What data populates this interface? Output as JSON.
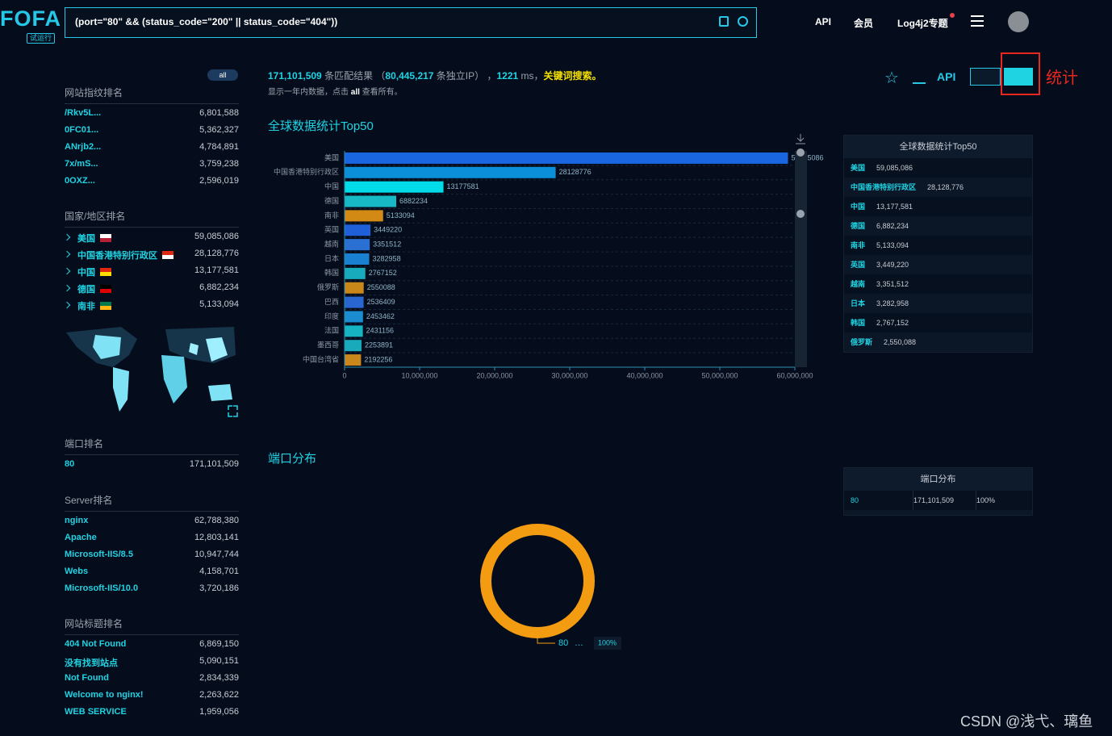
{
  "header": {
    "logo": "FOFA",
    "badge": "试运行",
    "query": "(port=\"80\" && (status_code=\"200\" || status_code=\"404\"))",
    "nav": [
      "API",
      "会员",
      "Log4j2专题"
    ]
  },
  "sidebar": {
    "all": "all",
    "sections": [
      {
        "title": "网站指纹排名",
        "rows": [
          [
            "/Rkv5L...",
            "6,801,588"
          ],
          [
            "0FC01...",
            "5,362,327"
          ],
          [
            "ANrjb2...",
            "4,784,891"
          ],
          [
            "7x/mS...",
            "3,759,238"
          ],
          [
            "0OXZ...",
            "2,596,019"
          ]
        ]
      },
      {
        "title": "国家/地区排名",
        "rows": [
          [
            "美国",
            "59,085,086"
          ],
          [
            "中国香港特别行政区",
            "28,128,776"
          ],
          [
            "中国",
            "13,177,581"
          ],
          [
            "德国",
            "6,882,234"
          ],
          [
            "南非",
            "5,133,094"
          ]
        ]
      },
      {
        "title": "端口排名",
        "rows": [
          [
            "80",
            "171,101,509"
          ]
        ]
      },
      {
        "title": "Server排名",
        "rows": [
          [
            "nginx",
            "62,788,380"
          ],
          [
            "Apache",
            "12,803,141"
          ],
          [
            "Microsoft-IIS/8.5",
            "10,947,744"
          ],
          [
            "Webs",
            "4,158,701"
          ],
          [
            "Microsoft-IIS/10.0",
            "3,720,186"
          ]
        ]
      },
      {
        "title": "网站标题排名",
        "rows": [
          [
            "404 Not Found",
            "6,869,150"
          ],
          [
            "没有找到站点",
            "5,090,151"
          ],
          [
            "Not Found",
            "2,834,339"
          ],
          [
            "Welcome to nginx!",
            "2,263,622"
          ],
          [
            "WEB SERVICE",
            "1,959,056"
          ]
        ]
      }
    ]
  },
  "summary": {
    "parts": [
      "171,101,509",
      " 条匹配结果 （",
      "80,445,217",
      " 条独立IP） ，",
      "1221",
      " ms，",
      "关键词搜索。"
    ],
    "note": [
      "显示一年内数据，点击 ",
      "all",
      " 查看所有。"
    ]
  },
  "toolbar": {
    "api": "API",
    "annotation": "统计"
  },
  "chart_data": [
    {
      "type": "bar",
      "orientation": "horizontal",
      "title": "全球数据统计Top50",
      "categories": [
        "美国",
        "中国香港特别行政区",
        "中国",
        "德国",
        "南非",
        "英国",
        "越南",
        "日本",
        "韩国",
        "俄罗斯",
        "巴西",
        "印度",
        "法国",
        "墨西哥",
        "中国台湾省"
      ],
      "values": [
        59085086,
        28128776,
        13177581,
        6882234,
        5133094,
        3449220,
        3351512,
        3282958,
        2767152,
        2550088,
        2536409,
        2453462,
        2431156,
        2253891,
        2192256
      ],
      "colors": [
        "#1a66e0",
        "#0b8fd8",
        "#00dbe9",
        "#17b9c6",
        "#d38a14",
        "#1f5fd8",
        "#2a6fd2",
        "#1a80d2",
        "#17abbb",
        "#c9871a",
        "#2a66d2",
        "#1a8ccf",
        "#16b3c2",
        "#19aabb",
        "#c9871c"
      ],
      "xlim": [
        0,
        60000000
      ],
      "xticks": [
        0,
        {
          "value": 10000000,
          "label": "10,000,000"
        },
        {
          "value": 20000000,
          "label": "20,000,000"
        },
        {
          "value": 30000000,
          "label": "30,000,000"
        },
        {
          "value": 40000000,
          "label": "40,000,000"
        },
        {
          "value": 50000000,
          "label": "50,000,000"
        },
        {
          "value": 60000000,
          "label": "60,000,000"
        }
      ]
    },
    {
      "type": "pie",
      "title": "端口分布",
      "categories": [
        "80"
      ],
      "values": [
        100
      ],
      "value_labels": [
        "100%"
      ],
      "colors": [
        "#f39c12"
      ]
    }
  ],
  "tables": [
    {
      "title": "全球数据统计Top50",
      "rows": [
        [
          "美国",
          "59,085,086"
        ],
        [
          "中国香港特别行政区",
          "28,128,776"
        ],
        [
          "中国",
          "13,177,581"
        ],
        [
          "德国",
          "6,882,234"
        ],
        [
          "南非",
          "5,133,094"
        ],
        [
          "英国",
          "3,449,220"
        ],
        [
          "越南",
          "3,351,512"
        ],
        [
          "日本",
          "3,282,958"
        ],
        [
          "韩国",
          "2,767,152"
        ],
        [
          "俄罗斯",
          "2,550,088"
        ]
      ]
    },
    {
      "title": "端口分布",
      "rows": [
        [
          "80",
          "171,101,509",
          "100%"
        ]
      ]
    }
  ],
  "watermark": "CSDN @浅弋、璃鱼"
}
